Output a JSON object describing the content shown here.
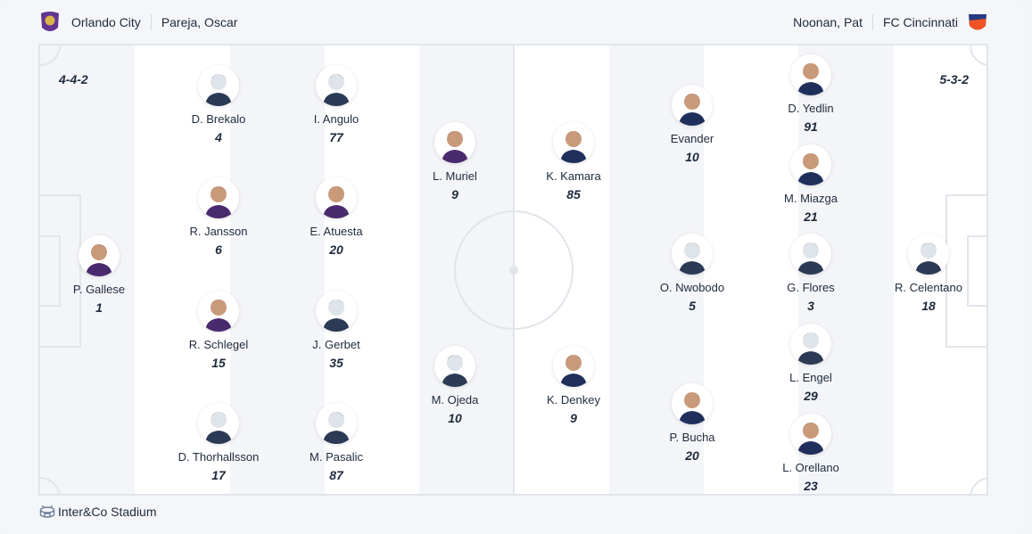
{
  "home": {
    "team": "Orlando City",
    "coach": "Pareja, Oscar",
    "formation": "4-4-2",
    "color": "#633492",
    "players": [
      {
        "name": "P. Gallese",
        "number": "1",
        "photo": true
      },
      {
        "name": "D. Brekalo",
        "number": "4",
        "photo": false
      },
      {
        "name": "R. Jansson",
        "number": "6",
        "photo": true
      },
      {
        "name": "R. Schlegel",
        "number": "15",
        "photo": true
      },
      {
        "name": "D. Thorhallsson",
        "number": "17",
        "photo": false
      },
      {
        "name": "I. Angulo",
        "number": "77",
        "photo": false
      },
      {
        "name": "E. Atuesta",
        "number": "20",
        "photo": true
      },
      {
        "name": "J. Gerbet",
        "number": "35",
        "photo": false
      },
      {
        "name": "M. Pasalic",
        "number": "87",
        "photo": false
      },
      {
        "name": "L. Muriel",
        "number": "9",
        "photo": true
      },
      {
        "name": "M. Ojeda",
        "number": "10",
        "photo": false
      }
    ]
  },
  "away": {
    "team": "FC Cincinnati",
    "coach": "Noonan, Pat",
    "formation": "5-3-2",
    "color": "#f05323",
    "players": [
      {
        "name": "K. Kamara",
        "number": "85",
        "photo": true
      },
      {
        "name": "K. Denkey",
        "number": "9",
        "photo": true
      },
      {
        "name": "Evander",
        "number": "10",
        "photo": true
      },
      {
        "name": "O. Nwobodo",
        "number": "5",
        "photo": false
      },
      {
        "name": "P. Bucha",
        "number": "20",
        "photo": true
      },
      {
        "name": "D. Yedlin",
        "number": "91",
        "photo": true
      },
      {
        "name": "M. Miazga",
        "number": "21",
        "photo": true
      },
      {
        "name": "G. Flores",
        "number": "3",
        "photo": false
      },
      {
        "name": "L. Engel",
        "number": "29",
        "photo": false
      },
      {
        "name": "L. Orellano",
        "number": "23",
        "photo": true
      },
      {
        "name": "R. Celentano",
        "number": "18",
        "photo": false
      }
    ]
  },
  "venue": {
    "name": "Inter&Co Stadium",
    "icon": "stadium-icon"
  }
}
